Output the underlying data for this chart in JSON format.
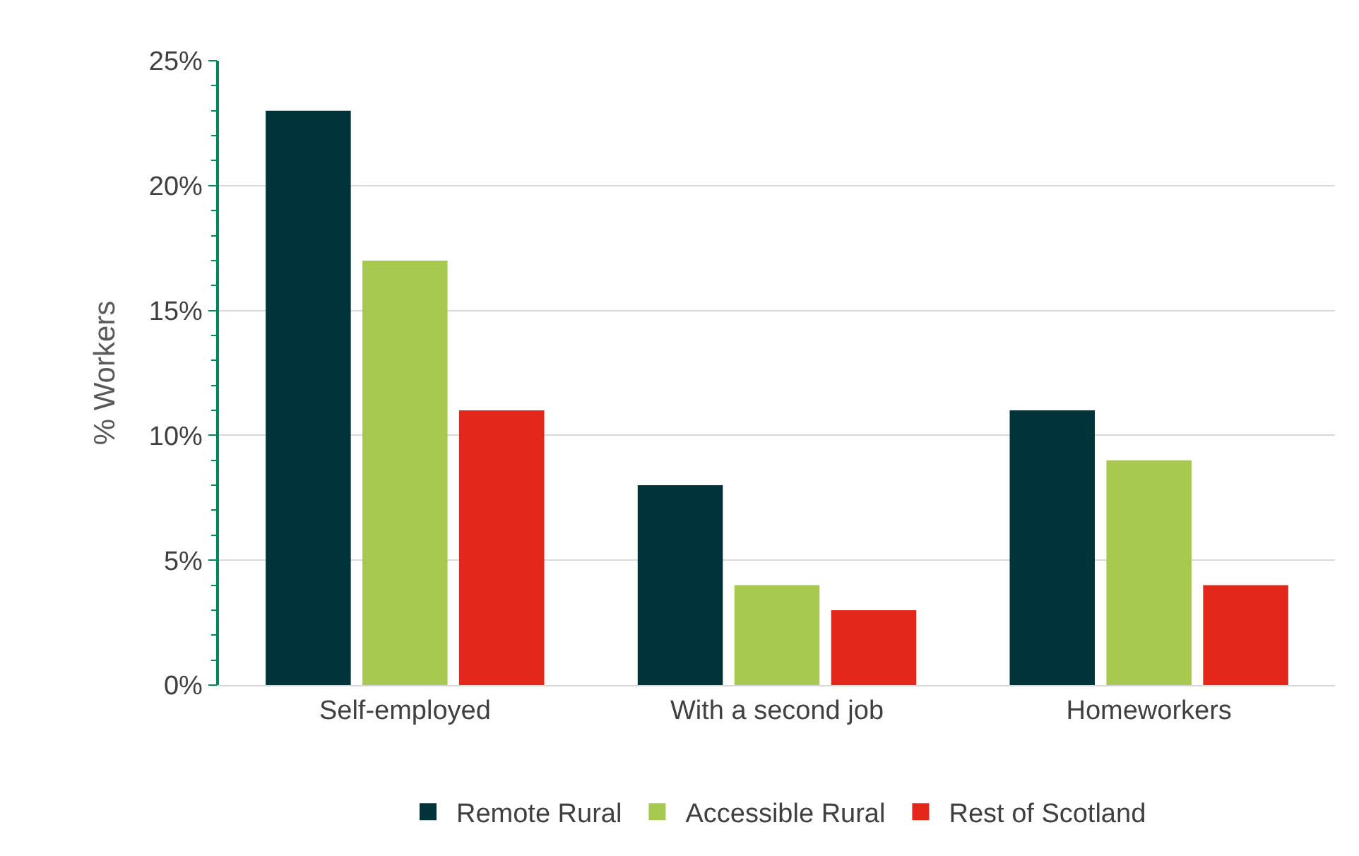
{
  "chart_data": {
    "type": "bar",
    "ylabel": "% Workers",
    "categories": [
      "Self-employed",
      "With a second job",
      "Homeworkers"
    ],
    "series": [
      {
        "name": "Remote Rural",
        "color": "#00343a",
        "values": [
          23,
          8,
          11
        ]
      },
      {
        "name": "Accessible Rural",
        "color": "#a8c94f",
        "values": [
          17,
          4,
          9
        ]
      },
      {
        "name": "Rest of Scotland",
        "color": "#e2271b",
        "values": [
          11,
          3,
          4
        ]
      }
    ],
    "ylim": [
      0,
      25
    ],
    "yticks": [
      {
        "value": 0,
        "label": "0%"
      },
      {
        "value": 5,
        "label": "5%"
      },
      {
        "value": 10,
        "label": "10%"
      },
      {
        "value": 15,
        "label": "15%"
      },
      {
        "value": 20,
        "label": "20%"
      },
      {
        "value": 25,
        "label": "25%"
      }
    ],
    "grid": "y",
    "legend": "bottom"
  }
}
